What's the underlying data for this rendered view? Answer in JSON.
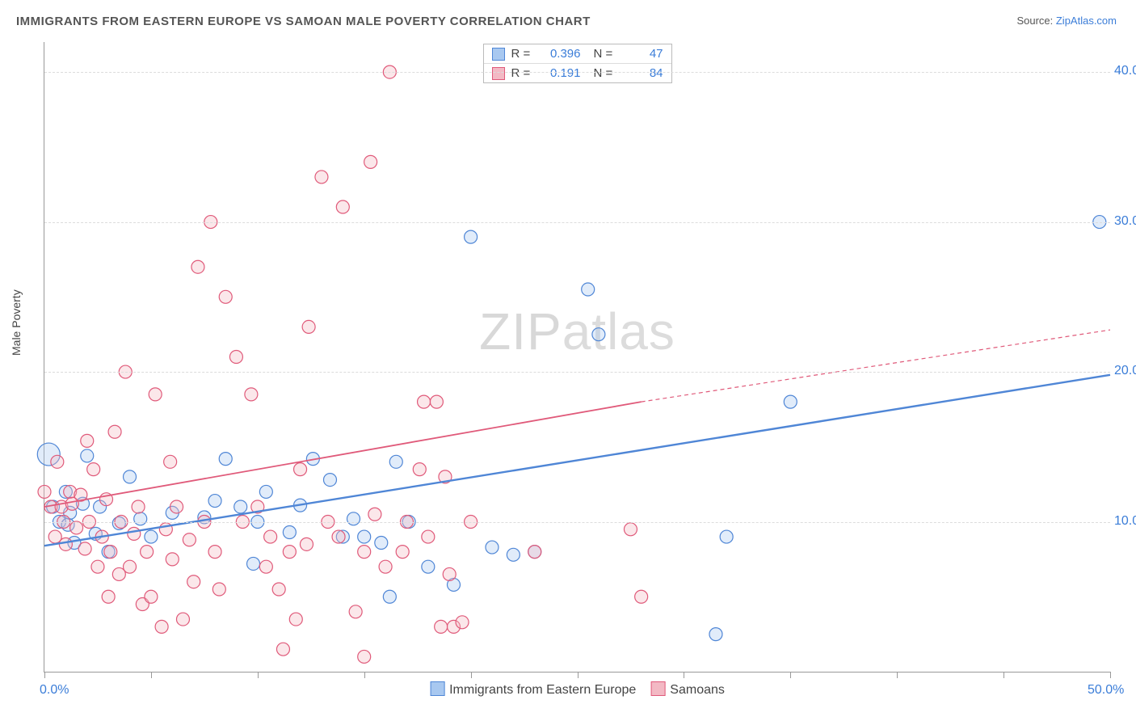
{
  "title": "IMMIGRANTS FROM EASTERN EUROPE VS SAMOAN MALE POVERTY CORRELATION CHART",
  "source_prefix": "Source: ",
  "source_name": "ZipAtlas.com",
  "ylabel": "Male Poverty",
  "watermark_a": "ZIP",
  "watermark_b": "atlas",
  "chart": {
    "type": "scatter",
    "xlim": [
      0,
      50
    ],
    "ylim": [
      0,
      42
    ],
    "x_ticks": [
      0,
      5,
      10,
      15,
      20,
      25,
      30,
      35,
      40,
      45,
      50
    ],
    "x_labels": [
      {
        "x": 0,
        "text": "0.0%"
      },
      {
        "x": 50,
        "text": "50.0%"
      }
    ],
    "y_gridlines": [
      10,
      20,
      30,
      40
    ],
    "y_labels": [
      {
        "y": 10,
        "text": "10.0%"
      },
      {
        "y": 20,
        "text": "20.0%"
      },
      {
        "y": 30,
        "text": "30.0%"
      },
      {
        "y": 40,
        "text": "40.0%"
      }
    ],
    "marker_radius": 8,
    "marker_stroke_width": 1.2,
    "marker_fill_opacity": 0.35,
    "background_color": "#ffffff",
    "grid_color": "#dcdcdc",
    "axis_color": "#999999",
    "series": [
      {
        "id": "eastern",
        "label": "Immigrants from Eastern Europe",
        "color_fill": "#a8c8f0",
        "color_stroke": "#4f86d6",
        "R": "0.396",
        "N": "47",
        "trend": {
          "x1": 0,
          "y1": 8.4,
          "x2": 50,
          "y2": 19.8,
          "width": 2.4,
          "dash": ""
        },
        "points": [
          [
            0.2,
            14.5,
            14
          ],
          [
            0.4,
            11.0,
            8
          ],
          [
            0.7,
            10.0,
            8
          ],
          [
            1.0,
            12.0,
            8
          ],
          [
            1.1,
            9.8,
            8
          ],
          [
            1.2,
            10.6,
            8
          ],
          [
            1.4,
            8.6,
            8
          ],
          [
            1.8,
            11.2,
            8
          ],
          [
            2.0,
            14.4,
            8
          ],
          [
            2.4,
            9.2,
            8
          ],
          [
            2.6,
            11.0,
            8
          ],
          [
            3.0,
            8.0,
            8
          ],
          [
            3.5,
            9.9,
            8
          ],
          [
            4.0,
            13.0,
            8
          ],
          [
            4.5,
            10.2,
            8
          ],
          [
            5.0,
            9.0,
            8
          ],
          [
            6.0,
            10.6,
            8
          ],
          [
            7.5,
            10.3,
            8
          ],
          [
            8.0,
            11.4,
            8
          ],
          [
            8.5,
            14.2,
            8
          ],
          [
            9.2,
            11.0,
            8
          ],
          [
            9.8,
            7.2,
            8
          ],
          [
            10.0,
            10.0,
            8
          ],
          [
            10.4,
            12.0,
            8
          ],
          [
            11.5,
            9.3,
            8
          ],
          [
            12.0,
            11.1,
            8
          ],
          [
            12.6,
            14.2,
            8
          ],
          [
            13.4,
            12.8,
            8
          ],
          [
            14.0,
            9.0,
            8
          ],
          [
            14.5,
            10.2,
            8
          ],
          [
            15.0,
            9.0,
            8
          ],
          [
            15.8,
            8.6,
            8
          ],
          [
            16.2,
            5.0,
            8
          ],
          [
            16.5,
            14.0,
            8
          ],
          [
            17.1,
            10.0,
            8
          ],
          [
            18.0,
            7.0,
            8
          ],
          [
            19.2,
            5.8,
            8
          ],
          [
            20.0,
            29.0,
            8
          ],
          [
            21.0,
            8.3,
            8
          ],
          [
            22.0,
            7.8,
            8
          ],
          [
            23.0,
            8.0,
            8
          ],
          [
            25.5,
            25.5,
            8
          ],
          [
            26.0,
            22.5,
            8
          ],
          [
            31.5,
            2.5,
            8
          ],
          [
            32.0,
            9.0,
            8
          ],
          [
            35.0,
            18.0,
            8
          ],
          [
            49.5,
            30.0,
            8
          ]
        ]
      },
      {
        "id": "samoans",
        "label": "Samoans",
        "color_fill": "#f3b9c4",
        "color_stroke": "#e05a7a",
        "R": "0.191",
        "N": "84",
        "trend_solid": {
          "x1": 0,
          "y1": 11.0,
          "x2": 28,
          "y2": 18.0,
          "width": 1.8
        },
        "trend_dash": {
          "x1": 28,
          "y1": 18.0,
          "x2": 50,
          "y2": 22.8,
          "width": 1.2,
          "dash": "5,4"
        },
        "points": [
          [
            0.0,
            12.0,
            8
          ],
          [
            0.3,
            11.0,
            8
          ],
          [
            0.5,
            9.0,
            8
          ],
          [
            0.6,
            14.0,
            8
          ],
          [
            0.8,
            11.0,
            8
          ],
          [
            0.9,
            10.0,
            8
          ],
          [
            1.0,
            8.5,
            8
          ],
          [
            1.2,
            12.0,
            8
          ],
          [
            1.3,
            11.2,
            8
          ],
          [
            1.5,
            9.6,
            8
          ],
          [
            1.7,
            11.8,
            8
          ],
          [
            1.9,
            8.2,
            8
          ],
          [
            2.0,
            15.4,
            8
          ],
          [
            2.1,
            10.0,
            8
          ],
          [
            2.3,
            13.5,
            8
          ],
          [
            2.5,
            7.0,
            8
          ],
          [
            2.7,
            9.0,
            8
          ],
          [
            2.9,
            11.5,
            8
          ],
          [
            3.0,
            5.0,
            8
          ],
          [
            3.1,
            8.0,
            8
          ],
          [
            3.3,
            16.0,
            8
          ],
          [
            3.5,
            6.5,
            8
          ],
          [
            3.6,
            10.0,
            8
          ],
          [
            3.8,
            20.0,
            8
          ],
          [
            4.0,
            7.0,
            8
          ],
          [
            4.2,
            9.2,
            8
          ],
          [
            4.4,
            11.0,
            8
          ],
          [
            4.6,
            4.5,
            8
          ],
          [
            4.8,
            8.0,
            8
          ],
          [
            5.0,
            5.0,
            8
          ],
          [
            5.2,
            18.5,
            8
          ],
          [
            5.5,
            3.0,
            8
          ],
          [
            5.7,
            9.5,
            8
          ],
          [
            5.9,
            14.0,
            8
          ],
          [
            6.0,
            7.5,
            8
          ],
          [
            6.2,
            11.0,
            8
          ],
          [
            6.5,
            3.5,
            8
          ],
          [
            6.8,
            8.8,
            8
          ],
          [
            7.0,
            6.0,
            8
          ],
          [
            7.2,
            27.0,
            8
          ],
          [
            7.5,
            10.0,
            8
          ],
          [
            7.8,
            30.0,
            8
          ],
          [
            8.0,
            8.0,
            8
          ],
          [
            8.2,
            5.5,
            8
          ],
          [
            8.5,
            25.0,
            8
          ],
          [
            9.0,
            21.0,
            8
          ],
          [
            9.3,
            10.0,
            8
          ],
          [
            9.7,
            18.5,
            8
          ],
          [
            10.0,
            11.0,
            8
          ],
          [
            10.4,
            7.0,
            8
          ],
          [
            10.6,
            9.0,
            8
          ],
          [
            11.0,
            5.5,
            8
          ],
          [
            11.2,
            1.5,
            8
          ],
          [
            11.5,
            8.0,
            8
          ],
          [
            11.8,
            3.5,
            8
          ],
          [
            12.0,
            13.5,
            8
          ],
          [
            12.3,
            8.5,
            8
          ],
          [
            12.4,
            23.0,
            8
          ],
          [
            13.0,
            33.0,
            8
          ],
          [
            13.3,
            10.0,
            8
          ],
          [
            13.8,
            9.0,
            8
          ],
          [
            14.0,
            31.0,
            8
          ],
          [
            14.6,
            4.0,
            8
          ],
          [
            15.0,
            8.0,
            8
          ],
          [
            15.3,
            34.0,
            8
          ],
          [
            15.5,
            10.5,
            8
          ],
          [
            16.0,
            7.0,
            8
          ],
          [
            16.2,
            40.0,
            8
          ],
          [
            16.8,
            8.0,
            8
          ],
          [
            17.0,
            10.0,
            8
          ],
          [
            17.6,
            13.5,
            8
          ],
          [
            17.8,
            18.0,
            8
          ],
          [
            18.0,
            9.0,
            8
          ],
          [
            18.4,
            18.0,
            8
          ],
          [
            18.6,
            3.0,
            8
          ],
          [
            18.8,
            13.0,
            8
          ],
          [
            19.0,
            6.5,
            8
          ],
          [
            19.2,
            3.0,
            8
          ],
          [
            19.6,
            3.3,
            8
          ],
          [
            20.0,
            10.0,
            8
          ],
          [
            23.0,
            8.0,
            8
          ],
          [
            27.5,
            9.5,
            8
          ],
          [
            28.0,
            5.0,
            8
          ],
          [
            15.0,
            1.0,
            8
          ]
        ]
      }
    ],
    "legend_bottom": [
      {
        "series": "eastern"
      },
      {
        "series": "samoans"
      }
    ]
  }
}
